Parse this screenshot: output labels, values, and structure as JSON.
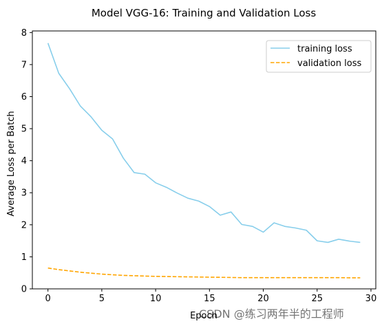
{
  "watermark": "CSDN @练习两年半的工程师",
  "chart_data": {
    "type": "line",
    "title": "Model VGG-16: Training and Validation Loss",
    "xlabel": "Epoch",
    "ylabel": "Average Loss per Batch",
    "xlim": [
      -1.45,
      30.45
    ],
    "ylim": [
      0,
      8.05
    ],
    "xticks": [
      0,
      5,
      10,
      15,
      20,
      25,
      30
    ],
    "yticks": [
      0,
      1,
      2,
      3,
      4,
      5,
      6,
      7,
      8
    ],
    "grid": false,
    "legend_position": "upper right",
    "x": [
      0,
      1,
      2,
      3,
      4,
      5,
      6,
      7,
      8,
      9,
      10,
      11,
      12,
      13,
      14,
      15,
      16,
      17,
      18,
      19,
      20,
      21,
      22,
      23,
      24,
      25,
      26,
      27,
      28,
      29
    ],
    "series": [
      {
        "name": "training loss",
        "color": "#87ceeb",
        "style": "solid",
        "values": [
          7.67,
          6.73,
          6.25,
          5.71,
          5.37,
          4.95,
          4.68,
          4.08,
          3.63,
          3.58,
          3.31,
          3.17,
          2.99,
          2.83,
          2.74,
          2.57,
          2.3,
          2.4,
          2.01,
          1.95,
          1.77,
          2.06,
          1.95,
          1.9,
          1.83,
          1.5,
          1.45,
          1.55,
          1.49,
          1.45
        ]
      },
      {
        "name": "validation loss",
        "color": "#ffa500",
        "style": "dashed",
        "values": [
          0.65,
          0.6,
          0.56,
          0.52,
          0.49,
          0.46,
          0.44,
          0.42,
          0.41,
          0.4,
          0.39,
          0.385,
          0.38,
          0.375,
          0.37,
          0.365,
          0.36,
          0.355,
          0.35,
          0.35,
          0.35,
          0.35,
          0.35,
          0.35,
          0.35,
          0.35,
          0.35,
          0.35,
          0.345,
          0.345
        ]
      }
    ]
  }
}
